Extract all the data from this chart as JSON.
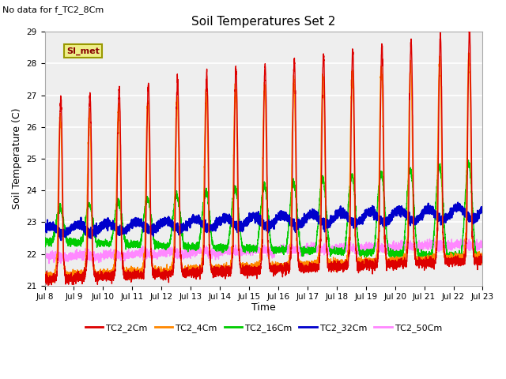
{
  "title": "Soil Temperatures Set 2",
  "subtitle": "No data for f_TC2_8Cm",
  "ylabel": "Soil Temperature (C)",
  "xlabel": "Time",
  "ylim": [
    21.0,
    29.0
  ],
  "yticks": [
    21.0,
    22.0,
    23.0,
    24.0,
    25.0,
    26.0,
    27.0,
    28.0,
    29.0
  ],
  "xtick_labels": [
    "Jul 8",
    "Jul 9",
    "Jul 10",
    "Jul 11",
    "Jul 12",
    "Jul 13",
    "Jul 14",
    "Jul 15",
    "Jul 16",
    "Jul 17",
    "Jul 18",
    "Jul 19",
    "Jul 20",
    "Jul 21",
    "Jul 22",
    "Jul 23"
  ],
  "legend_label": "SI_met",
  "series_colors": {
    "TC2_2Cm": "#dd0000",
    "TC2_4Cm": "#ff8800",
    "TC2_16Cm": "#00cc00",
    "TC2_32Cm": "#0000cc",
    "TC2_50Cm": "#ff88ff"
  },
  "fig_bg_color": "#ffffff",
  "plot_bg_color": "#eeeeee",
  "grid_color": "#ffffff"
}
